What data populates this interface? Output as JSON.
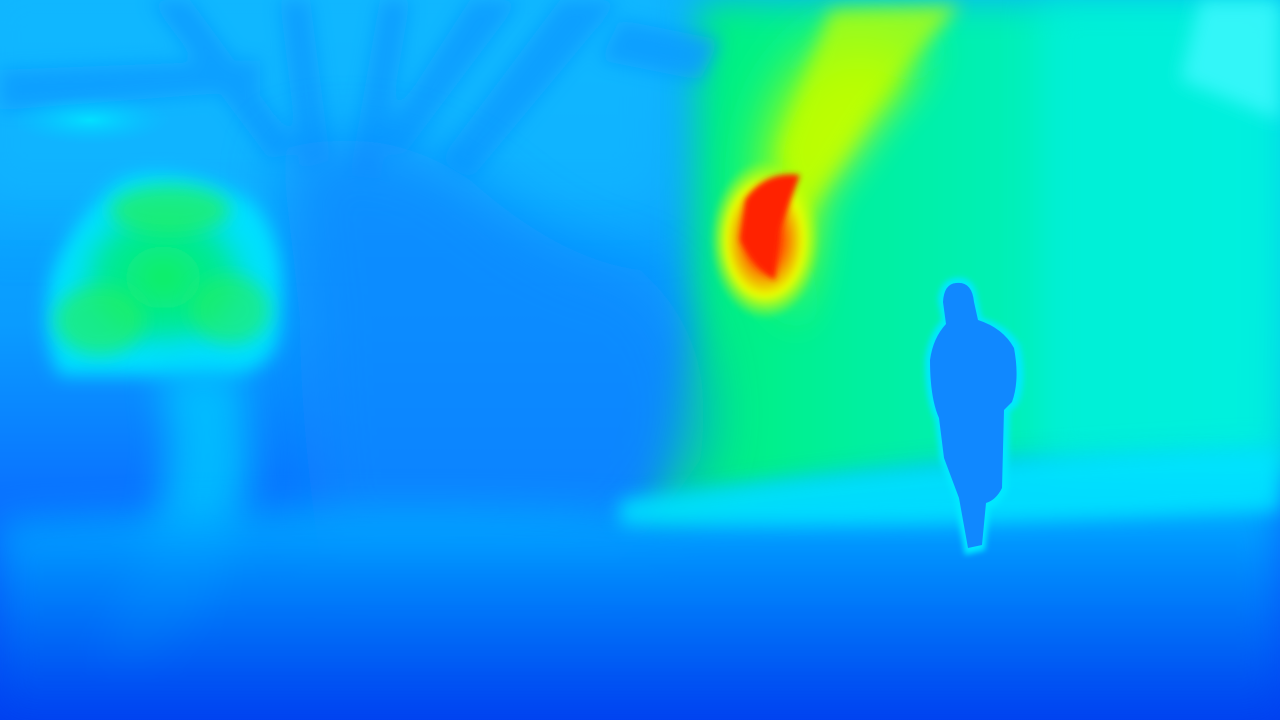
{
  "image": {
    "kind": "depth-map",
    "colormap": "jet",
    "colors": {
      "far": "#0040f0",
      "mid_far": "#0090ff",
      "mid": "#00e0ff",
      "mid_near": "#00f080",
      "near": "#e0ff00",
      "nearest": "#ff0000"
    },
    "regions": [
      "ground-plane",
      "tree-trunk",
      "tree-branches",
      "bright-foliage-left",
      "bright-sky-region-right",
      "hotspot-red",
      "person-silhouette"
    ]
  }
}
